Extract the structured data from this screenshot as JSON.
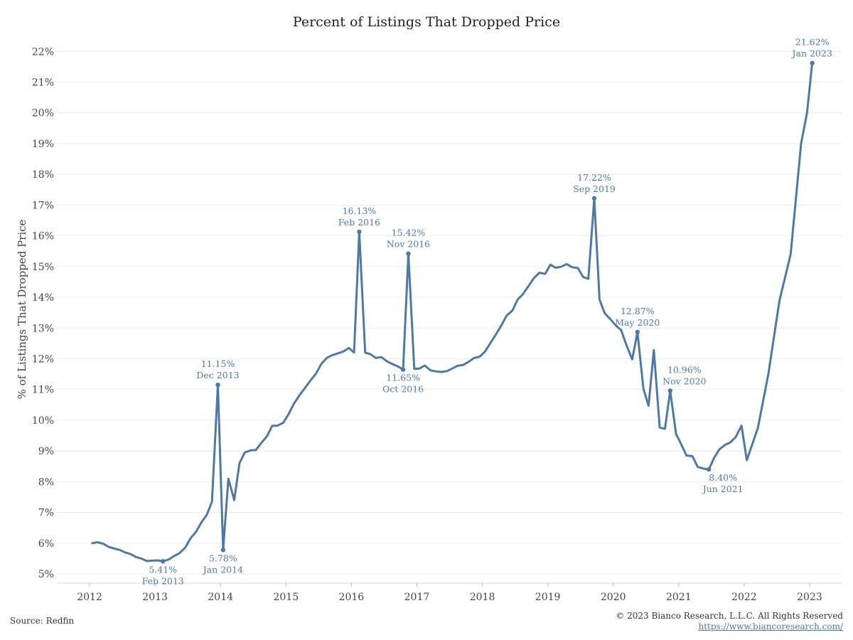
{
  "chart_data": {
    "type": "line",
    "title": "Percent of Listings That Dropped Price",
    "ylabel": "% of Listings That Dropped Price",
    "xlabel": "",
    "xlim": [
      2011.5,
      2023.5
    ],
    "ylim": [
      4.7,
      22.4
    ],
    "x_ticks": [
      2012,
      2013,
      2014,
      2015,
      2016,
      2017,
      2018,
      2019,
      2020,
      2021,
      2022,
      2023
    ],
    "x_tick_labels": [
      "2012",
      "2013",
      "2014",
      "2015",
      "2016",
      "2017",
      "2018",
      "2019",
      "2020",
      "2021",
      "2022",
      "2023"
    ],
    "y_ticks": [
      5,
      6,
      7,
      8,
      9,
      10,
      11,
      12,
      13,
      14,
      15,
      16,
      17,
      18,
      19,
      20,
      21,
      22
    ],
    "y_tick_labels": [
      "5%",
      "6%",
      "7%",
      "8%",
      "9%",
      "10%",
      "11%",
      "12%",
      "13%",
      "14%",
      "15%",
      "16%",
      "17%",
      "18%",
      "19%",
      "20%",
      "21%",
      "22%"
    ],
    "grid": "horizontal",
    "line_color": "#4e79a7",
    "series": [
      {
        "x": [
          2012.04,
          2012.12,
          2012.21,
          2012.29,
          2012.37,
          2012.46,
          2012.54,
          2012.62,
          2012.71,
          2012.79,
          2012.87,
          2012.96,
          2013.04,
          2013.12,
          2013.21,
          2013.29,
          2013.37,
          2013.46,
          2013.54,
          2013.62,
          2013.71,
          2013.79,
          2013.87,
          2013.96,
          2014.04,
          2014.12,
          2014.21,
          2014.29,
          2014.37,
          2014.46,
          2014.54,
          2014.62,
          2014.71,
          2014.79,
          2014.87,
          2014.96,
          2015.04,
          2015.12,
          2015.21,
          2015.29,
          2015.37,
          2015.46,
          2015.54,
          2015.62,
          2015.71,
          2015.79,
          2015.87,
          2015.96,
          2016.04,
          2016.12,
          2016.21,
          2016.29,
          2016.37,
          2016.46,
          2016.54,
          2016.62,
          2016.71,
          2016.79,
          2016.87,
          2016.96,
          2017.04,
          2017.12,
          2017.21,
          2017.29,
          2017.37,
          2017.46,
          2017.54,
          2017.62,
          2017.71,
          2017.79,
          2017.87,
          2017.96,
          2018.04,
          2018.12,
          2018.21,
          2018.29,
          2018.37,
          2018.46,
          2018.54,
          2018.62,
          2018.71,
          2018.79,
          2018.87,
          2018.96,
          2019.04,
          2019.12,
          2019.21,
          2019.29,
          2019.37,
          2019.46,
          2019.54,
          2019.62,
          2019.71,
          2019.79,
          2019.87,
          2019.96,
          2020.04,
          2020.12,
          2020.21,
          2020.29,
          2020.37,
          2020.46,
          2020.54,
          2020.62,
          2020.71,
          2020.79,
          2020.87,
          2020.96,
          2021.04,
          2021.12,
          2021.21,
          2021.29,
          2021.37,
          2021.46,
          2021.54,
          2021.62,
          2021.71,
          2021.79,
          2021.87,
          2021.96,
          2022.04,
          2022.21,
          2022.37,
          2022.54,
          2022.71,
          2022.87,
          2022.96,
          2023.04
        ],
        "values": [
          6.0,
          6.03,
          5.98,
          5.88,
          5.83,
          5.78,
          5.7,
          5.65,
          5.55,
          5.5,
          5.42,
          5.43,
          5.44,
          5.41,
          5.47,
          5.58,
          5.67,
          5.85,
          6.15,
          6.35,
          6.68,
          6.92,
          7.35,
          11.15,
          5.78,
          8.1,
          7.4,
          8.6,
          8.95,
          9.02,
          9.03,
          9.25,
          9.48,
          9.82,
          9.82,
          9.92,
          10.2,
          10.53,
          10.82,
          11.05,
          11.28,
          11.52,
          11.83,
          12.02,
          12.12,
          12.17,
          12.23,
          12.35,
          12.2,
          16.13,
          12.2,
          12.15,
          12.03,
          12.05,
          11.92,
          11.83,
          11.75,
          11.65,
          15.42,
          11.67,
          11.68,
          11.78,
          11.62,
          11.59,
          11.57,
          11.6,
          11.68,
          11.77,
          11.8,
          11.9,
          12.02,
          12.07,
          12.23,
          12.5,
          12.8,
          13.08,
          13.4,
          13.57,
          13.93,
          14.1,
          14.38,
          14.63,
          14.8,
          14.76,
          15.06,
          14.96,
          15.0,
          15.08,
          14.98,
          14.95,
          14.66,
          14.6,
          17.22,
          13.93,
          13.48,
          13.28,
          13.08,
          12.93,
          12.4,
          11.98,
          12.87,
          11.03,
          10.47,
          12.28,
          9.76,
          9.72,
          10.96,
          9.55,
          9.21,
          8.85,
          8.83,
          8.48,
          8.43,
          8.4,
          8.77,
          9.05,
          9.2,
          9.28,
          9.45,
          9.82,
          8.7,
          9.75,
          11.5,
          13.9,
          15.4,
          19.0,
          20.0,
          21.62
        ]
      }
    ],
    "annotations": [
      {
        "x": 2013.12,
        "y": 5.41,
        "value": "5.41%",
        "date": "Feb 2013",
        "pos": "below"
      },
      {
        "x": 2013.96,
        "y": 11.15,
        "value": "11.15%",
        "date": "Dec 2013",
        "pos": "above"
      },
      {
        "x": 2014.04,
        "y": 5.78,
        "value": "5.78%",
        "date": "Jan 2014",
        "pos": "below"
      },
      {
        "x": 2016.12,
        "y": 16.13,
        "value": "16.13%",
        "date": "Feb 2016",
        "pos": "above"
      },
      {
        "x": 2016.79,
        "y": 11.65,
        "value": "11.65%",
        "date": "Oct 2016",
        "pos": "below"
      },
      {
        "x": 2016.87,
        "y": 15.42,
        "value": "15.42%",
        "date": "Nov 2016",
        "pos": "above"
      },
      {
        "x": 2019.71,
        "y": 17.22,
        "value": "17.22%",
        "date": "Sep 2019",
        "pos": "above"
      },
      {
        "x": 2020.37,
        "y": 12.87,
        "value": "12.87%",
        "date": "May 2020",
        "pos": "above"
      },
      {
        "x": 2020.87,
        "y": 10.96,
        "value": "10.96%",
        "date": "Nov 2020",
        "pos": "above-right"
      },
      {
        "x": 2021.46,
        "y": 8.4,
        "value": "8.40%",
        "date": "Jun 2021",
        "pos": "below-right"
      },
      {
        "x": 2023.04,
        "y": 21.62,
        "value": "21.62%",
        "date": "Jan 2023",
        "pos": "above"
      }
    ]
  },
  "footer": {
    "source": "Source: Redfin",
    "copyright": "© 2023 Bianco Research, L.L.C. All Rights Reserved",
    "url": "https://www.biancoresearch.com/"
  }
}
